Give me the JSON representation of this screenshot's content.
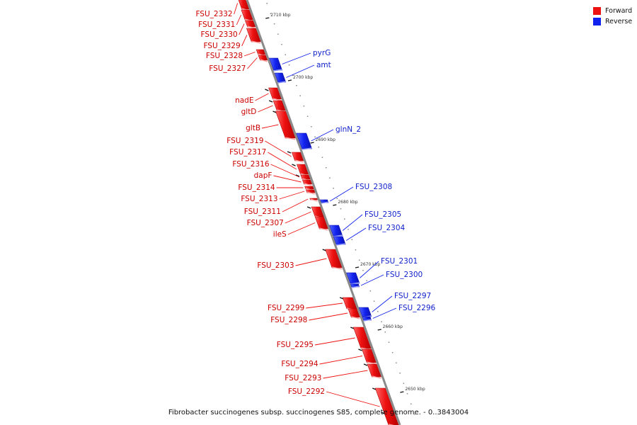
{
  "legend": {
    "forward_label": "Forward",
    "reverse_label": "Reverse",
    "forward_color": "#ee1111",
    "reverse_color": "#1122ee"
  },
  "caption": "Fibrobacter succinogenes subsp. succinogenes S85, complete genome. - 0..3843004",
  "ticks": [
    {
      "label": "2710 kbp",
      "kbp": 2710
    },
    {
      "label": "2700 kbp",
      "kbp": 2700
    },
    {
      "label": "2690 kbp",
      "kbp": 2690
    },
    {
      "label": "2680 kbp",
      "kbp": 2680
    },
    {
      "label": "2670 kbp",
      "kbp": 2670
    },
    {
      "label": "2660 kbp",
      "kbp": 2660
    },
    {
      "label": "2650 kbp",
      "kbp": 2650
    }
  ],
  "forward_genes": [
    {
      "name": "FSU_2332"
    },
    {
      "name": "FSU_2331"
    },
    {
      "name": "FSU_2330"
    },
    {
      "name": "FSU_2329"
    },
    {
      "name": "FSU_2328"
    },
    {
      "name": "FSU_2327"
    },
    {
      "name": "nadE"
    },
    {
      "name": "gltD"
    },
    {
      "name": "gltB"
    },
    {
      "name": "FSU_2319"
    },
    {
      "name": "FSU_2317"
    },
    {
      "name": "FSU_2316"
    },
    {
      "name": "dapF"
    },
    {
      "name": "FSU_2314"
    },
    {
      "name": "FSU_2313"
    },
    {
      "name": "FSU_2311"
    },
    {
      "name": "FSU_2307"
    },
    {
      "name": "ileS"
    },
    {
      "name": "FSU_2303"
    },
    {
      "name": "FSU_2299"
    },
    {
      "name": "FSU_2298"
    },
    {
      "name": "FSU_2295"
    },
    {
      "name": "FSU_2294"
    },
    {
      "name": "FSU_2293"
    },
    {
      "name": "FSU_2292"
    }
  ],
  "reverse_genes": [
    {
      "name": "pyrG"
    },
    {
      "name": "amt"
    },
    {
      "name": "glnN_2"
    },
    {
      "name": "FSU_2308"
    },
    {
      "name": "FSU_2305"
    },
    {
      "name": "FSU_2304"
    },
    {
      "name": "FSU_2301"
    },
    {
      "name": "FSU_2300"
    },
    {
      "name": "FSU_2297"
    },
    {
      "name": "FSU_2296"
    }
  ]
}
